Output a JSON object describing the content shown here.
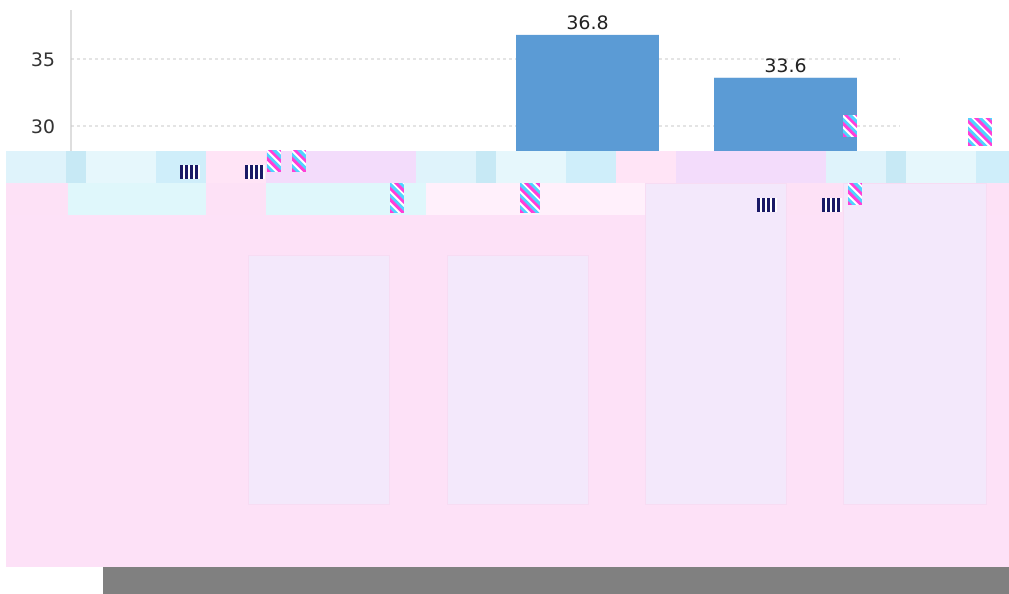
{
  "chart_data": {
    "type": "bar",
    "title": "",
    "xlabel": "",
    "ylabel": "",
    "y_ticks": [
      "35",
      "30"
    ],
    "categories": [
      "",
      "",
      "",
      ""
    ],
    "values": [
      null,
      null,
      36.8,
      33.6
    ],
    "value_labels": [
      "",
      "",
      "36.8",
      "33.6"
    ],
    "ylim": [
      28,
      38
    ],
    "grid": true,
    "colors": {
      "bar": "#5b9bd5",
      "grid": "#c8c8c8",
      "axis": "#bdbdbd",
      "glitch_pink": "#fde1f7",
      "footer": "#808080"
    }
  }
}
